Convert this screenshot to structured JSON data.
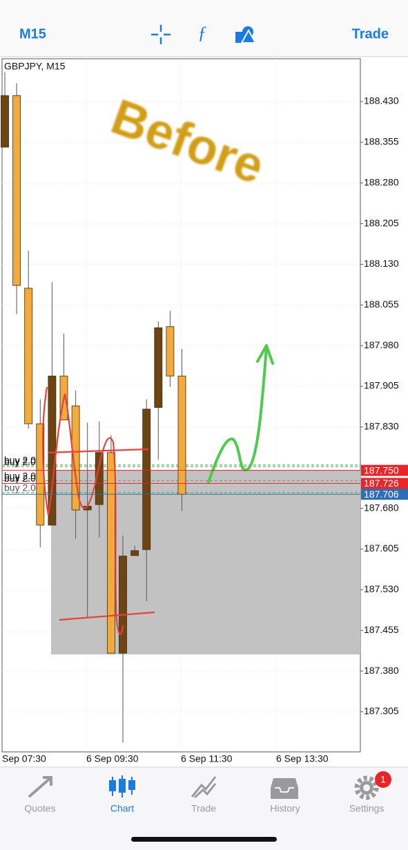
{
  "top_bar": {
    "timeframe": "M15",
    "trade": "Trade"
  },
  "chart_data": {
    "type": "candlestick",
    "title": "GBPJPY, M15",
    "annotation": "Before",
    "x_labels": [
      "Sep 07:30",
      "6 Sep 09:30",
      "6 Sep 11:30",
      "6 Sep 13:30"
    ],
    "open": [
      188.346,
      188.441,
      188.086,
      187.836,
      187.649,
      187.924,
      187.869,
      187.677,
      187.687,
      187.783,
      187.413,
      187.593,
      187.604,
      187.866,
      188.015,
      187.924
    ],
    "high": [
      188.484,
      188.464,
      188.155,
      187.881,
      188.097,
      188.002,
      187.897,
      187.838,
      187.84,
      187.815,
      187.63,
      187.611,
      187.881,
      188.025,
      188.044,
      187.974
    ],
    "low": [
      188.346,
      188.038,
      187.827,
      187.608,
      187.649,
      187.843,
      187.624,
      187.477,
      187.626,
      187.413,
      187.248,
      187.593,
      187.509,
      187.77,
      187.904,
      187.675
    ],
    "close": [
      188.441,
      188.091,
      187.836,
      187.649,
      187.924,
      187.843,
      187.677,
      187.684,
      187.783,
      187.413,
      187.592,
      187.602,
      187.863,
      188.013,
      187.924,
      187.706
    ],
    "up_color": "#6e4512",
    "down_color": "#f2aa3a",
    "ylim": [
      187.231,
      188.509
    ],
    "yticks": [
      {
        "value": 188.43,
        "label": "188.430"
      },
      188.355,
      {
        "value": 188.28,
        "label": "188.280"
      },
      188.205,
      {
        "value": 188.13,
        "label": "188.130"
      },
      188.055,
      {
        "value": 187.98,
        "label": "187.980"
      },
      187.905,
      {
        "value": 187.83,
        "label": "187.830"
      },
      {
        "value": 187.68,
        "label": "187.680"
      },
      187.605,
      {
        "value": 187.53,
        "label": "187.530"
      },
      187.455,
      {
        "value": 187.38,
        "label": "187.380"
      },
      187.305
    ],
    "grid": true,
    "price_tags": [
      {
        "value": 187.75,
        "label": "187.750",
        "color": "#e8262a"
      },
      {
        "value": 187.726,
        "color": "#e8262a"
      },
      {
        "value": 187.706,
        "color": "#2f6db5"
      }
    ],
    "orders": [
      {
        "label": "buy 2.00",
        "price": 187.76
      },
      {
        "label": "buy 2.00",
        "price": 187.757
      },
      {
        "label": "buy 2.00",
        "price": 187.731
      },
      {
        "label": "buy 2.00",
        "price": 187.726
      },
      {
        "label": "buy 2.00",
        "price": 187.709
      }
    ]
  },
  "tab_bar": {
    "tabs": [
      {
        "label": "Quotes"
      },
      {
        "label": "Chart"
      },
      {
        "label": "Trade"
      },
      {
        "label": "History"
      },
      {
        "label": "Settings"
      }
    ],
    "badge": 1
  }
}
